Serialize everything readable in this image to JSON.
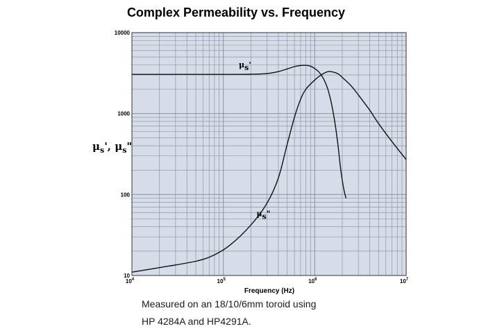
{
  "chart_data": {
    "type": "line",
    "title": "Complex Permeability vs. Frequency",
    "xlabel": "Frequency (Hz)",
    "ylabel": "μs', μs\"",
    "x_scale": "log",
    "y_scale": "log",
    "xlim": [
      10000,
      10000000
    ],
    "ylim": [
      10,
      10000
    ],
    "x_ticks": [
      {
        "base": "10",
        "exp": "4"
      },
      {
        "base": "10",
        "exp": "5"
      },
      {
        "base": "10",
        "exp": "6"
      },
      {
        "base": "10",
        "exp": "7"
      }
    ],
    "y_ticks": [
      "10",
      "100",
      "1000",
      "10000"
    ],
    "grid": true,
    "plot_background": "#d6dde8",
    "grid_color": "#8f97a6",
    "line_color": "#111111",
    "series": [
      {
        "name": "μs'",
        "label_base": "μ",
        "label_sub": "s",
        "label_suffix": "'",
        "x": [
          10000,
          30000,
          100000,
          200000,
          300000,
          400000,
          500000,
          600000,
          700000,
          800000,
          900000,
          1000000,
          1100000,
          1200000,
          1300000,
          1400000,
          1500000,
          1600000,
          1700000,
          1800000,
          1900000,
          2000000,
          2100000,
          2200000
        ],
        "y": [
          3050,
          3050,
          3050,
          3060,
          3120,
          3300,
          3560,
          3800,
          3920,
          3940,
          3850,
          3600,
          3300,
          2900,
          2450,
          1950,
          1450,
          1000,
          650,
          400,
          230,
          150,
          110,
          90
        ]
      },
      {
        "name": "μs\"",
        "label_base": "μ",
        "label_sub": "s",
        "label_suffix": "\"",
        "x": [
          10000,
          20000,
          50000,
          80000,
          120000,
          200000,
          300000,
          400000,
          500000,
          600000,
          700000,
          800000,
          1000000,
          1200000,
          1400000,
          1600000,
          1800000,
          2000000,
          2500000,
          3000000,
          4000000,
          5000000,
          7000000,
          10000000
        ],
        "y": [
          11,
          12.5,
          15,
          18,
          24,
          42,
          78,
          160,
          420,
          900,
          1500,
          2000,
          2600,
          3050,
          3300,
          3250,
          3100,
          2800,
          2200,
          1700,
          1100,
          750,
          450,
          270
        ]
      }
    ]
  },
  "caption": {
    "line1": "Measured on an 18/10/6mm toroid using",
    "line2": "HP 4284A and HP4291A."
  }
}
